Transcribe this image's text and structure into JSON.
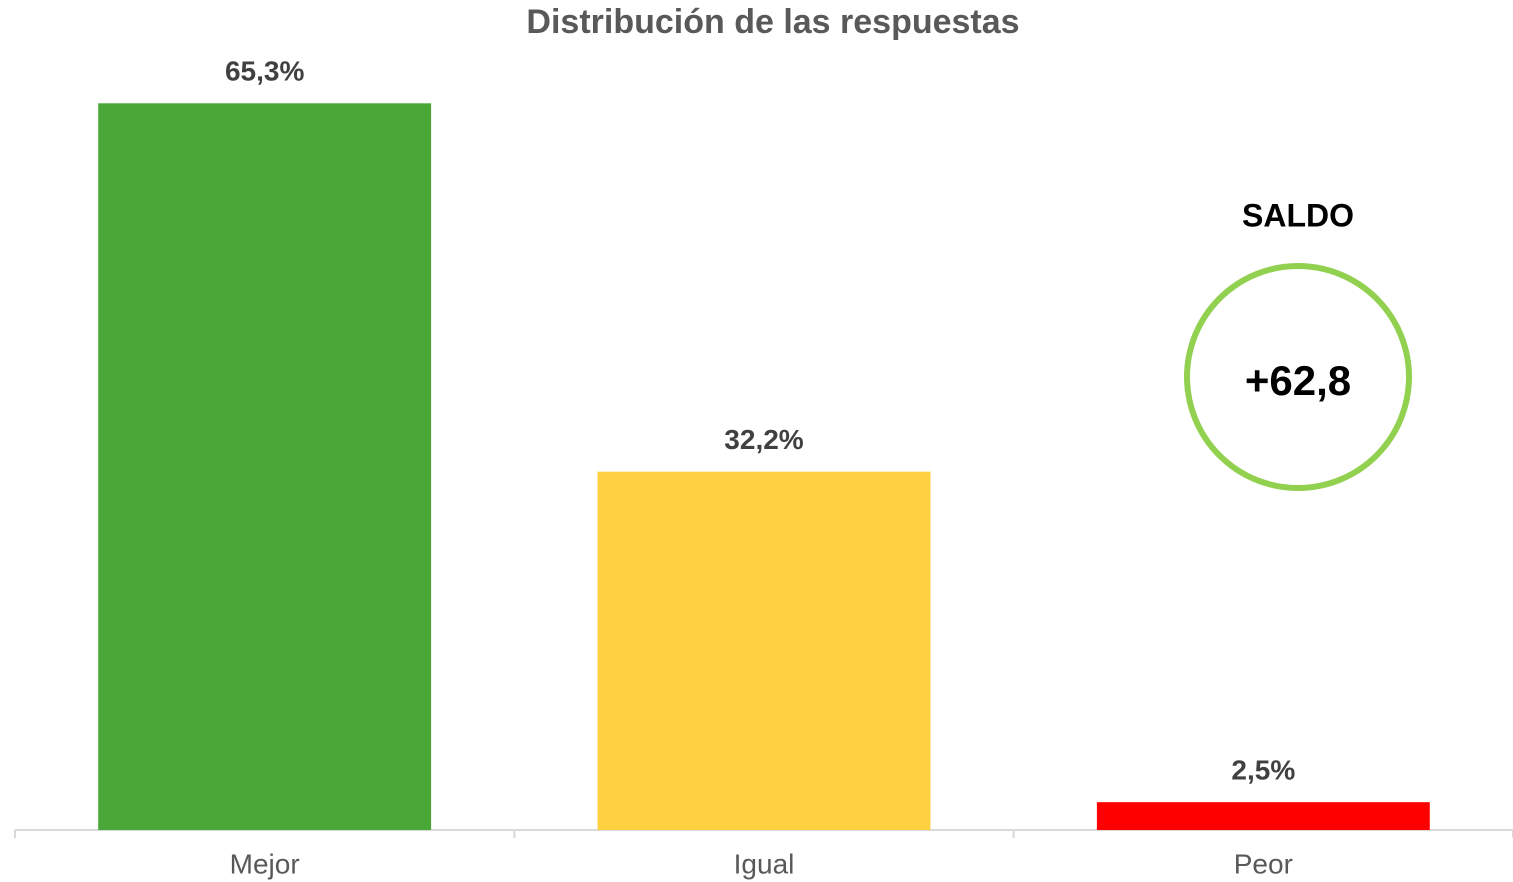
{
  "chart_data": {
    "type": "bar",
    "title": "Distribución de las respuestas",
    "categories": [
      "Mejor",
      "Igual",
      "Peor"
    ],
    "values": [
      65.3,
      32.2,
      2.5
    ],
    "value_labels": [
      "65,3%",
      "32,2%",
      "2,5%"
    ],
    "colors": [
      "#48a736",
      "#fed140",
      "#fe0000"
    ],
    "ylim": [
      0,
      70
    ],
    "annotations": {
      "saldo_title": "SALDO",
      "saldo_value": "+62,8"
    }
  }
}
